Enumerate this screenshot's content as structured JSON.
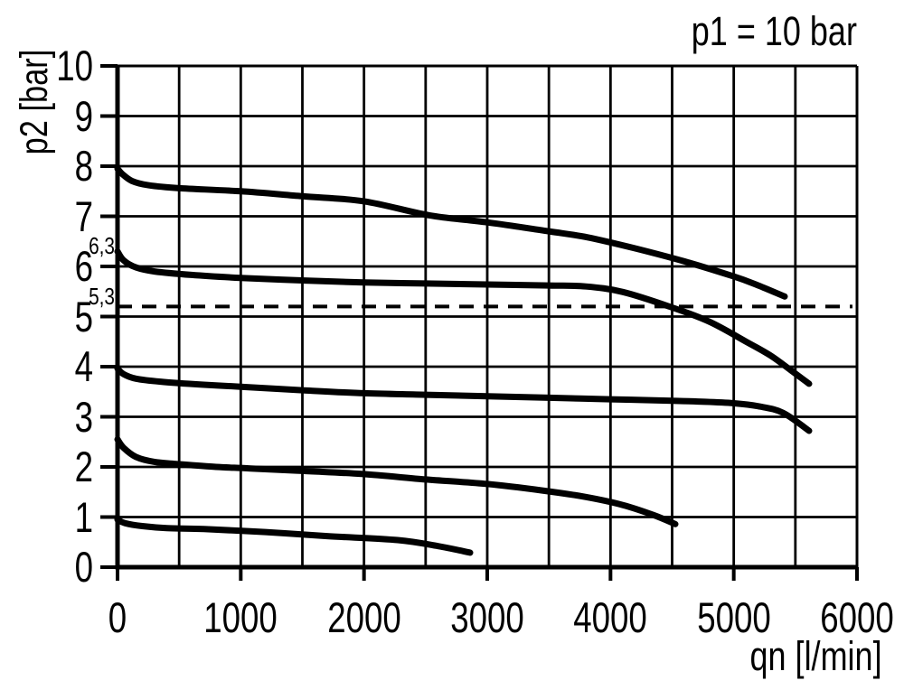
{
  "chart_data": {
    "type": "line",
    "title": "p1 = 10 bar",
    "xlabel": "qn [l/min]",
    "ylabel": "p2 [bar]",
    "xlim": [
      0,
      6000
    ],
    "ylim": [
      0,
      10
    ],
    "x_tick_labels": [
      0,
      1000,
      2000,
      3000,
      4000,
      5000,
      6000
    ],
    "y_tick_labels": [
      0,
      1,
      2,
      3,
      4,
      5,
      6,
      7,
      8,
      9,
      10
    ],
    "x_grid_step": 500,
    "y_grid_step": 1,
    "grid": true,
    "legend": "none",
    "line_color": "#000000",
    "background_color": "#ffffff",
    "reference_lines": [
      {
        "y": 5.2,
        "style": "dashed"
      }
    ],
    "annotations": [
      {
        "text": "6,3",
        "y": 6.3
      },
      {
        "text": "5,3",
        "y": 5.3
      }
    ],
    "series": [
      {
        "points": [
          [
            0,
            7.95
          ],
          [
            40,
            7.84
          ],
          [
            120,
            7.7
          ],
          [
            250,
            7.62
          ],
          [
            500,
            7.56
          ],
          [
            1000,
            7.5
          ],
          [
            1500,
            7.4
          ],
          [
            2000,
            7.3
          ],
          [
            2530,
            7.02
          ],
          [
            3000,
            6.88
          ],
          [
            3500,
            6.7
          ],
          [
            3814,
            6.58
          ],
          [
            4200,
            6.36
          ],
          [
            4600,
            6.1
          ],
          [
            5000,
            5.8
          ],
          [
            5200,
            5.62
          ],
          [
            5413,
            5.4
          ]
        ]
      },
      {
        "points": [
          [
            0,
            6.3
          ],
          [
            50,
            6.12
          ],
          [
            150,
            5.98
          ],
          [
            300,
            5.9
          ],
          [
            600,
            5.83
          ],
          [
            1000,
            5.77
          ],
          [
            1500,
            5.72
          ],
          [
            2000,
            5.68
          ],
          [
            2500,
            5.66
          ],
          [
            3000,
            5.64
          ],
          [
            3500,
            5.62
          ],
          [
            3800,
            5.6
          ],
          [
            4100,
            5.49
          ],
          [
            4490,
            5.19
          ],
          [
            4800,
            4.9
          ],
          [
            5100,
            4.5
          ],
          [
            5300,
            4.22
          ],
          [
            5463,
            3.93
          ],
          [
            5611,
            3.66
          ]
        ]
      },
      {
        "points": [
          [
            0,
            3.96
          ],
          [
            50,
            3.85
          ],
          [
            150,
            3.76
          ],
          [
            350,
            3.7
          ],
          [
            700,
            3.64
          ],
          [
            1000,
            3.6
          ],
          [
            1500,
            3.53
          ],
          [
            2000,
            3.47
          ],
          [
            2500,
            3.44
          ],
          [
            3000,
            3.41
          ],
          [
            3500,
            3.38
          ],
          [
            4000,
            3.35
          ],
          [
            4500,
            3.32
          ],
          [
            4767,
            3.3
          ],
          [
            5000,
            3.27
          ],
          [
            5200,
            3.21
          ],
          [
            5400,
            3.08
          ],
          [
            5611,
            2.72
          ]
        ]
      },
      {
        "points": [
          [
            0,
            2.55
          ],
          [
            50,
            2.38
          ],
          [
            150,
            2.2
          ],
          [
            300,
            2.1
          ],
          [
            475,
            2.06
          ],
          [
            800,
            2.0
          ],
          [
            1080,
            1.97
          ],
          [
            1500,
            1.92
          ],
          [
            1980,
            1.86
          ],
          [
            2500,
            1.75
          ],
          [
            3000,
            1.66
          ],
          [
            3447,
            1.53
          ],
          [
            3800,
            1.4
          ],
          [
            4100,
            1.24
          ],
          [
            4350,
            1.04
          ],
          [
            4526,
            0.86
          ]
        ]
      },
      {
        "points": [
          [
            0,
            0.95
          ],
          [
            60,
            0.88
          ],
          [
            200,
            0.82
          ],
          [
            400,
            0.78
          ],
          [
            700,
            0.76
          ],
          [
            1200,
            0.7
          ],
          [
            1700,
            0.62
          ],
          [
            2274,
            0.54
          ],
          [
            2600,
            0.42
          ],
          [
            2861,
            0.29
          ]
        ]
      }
    ]
  }
}
